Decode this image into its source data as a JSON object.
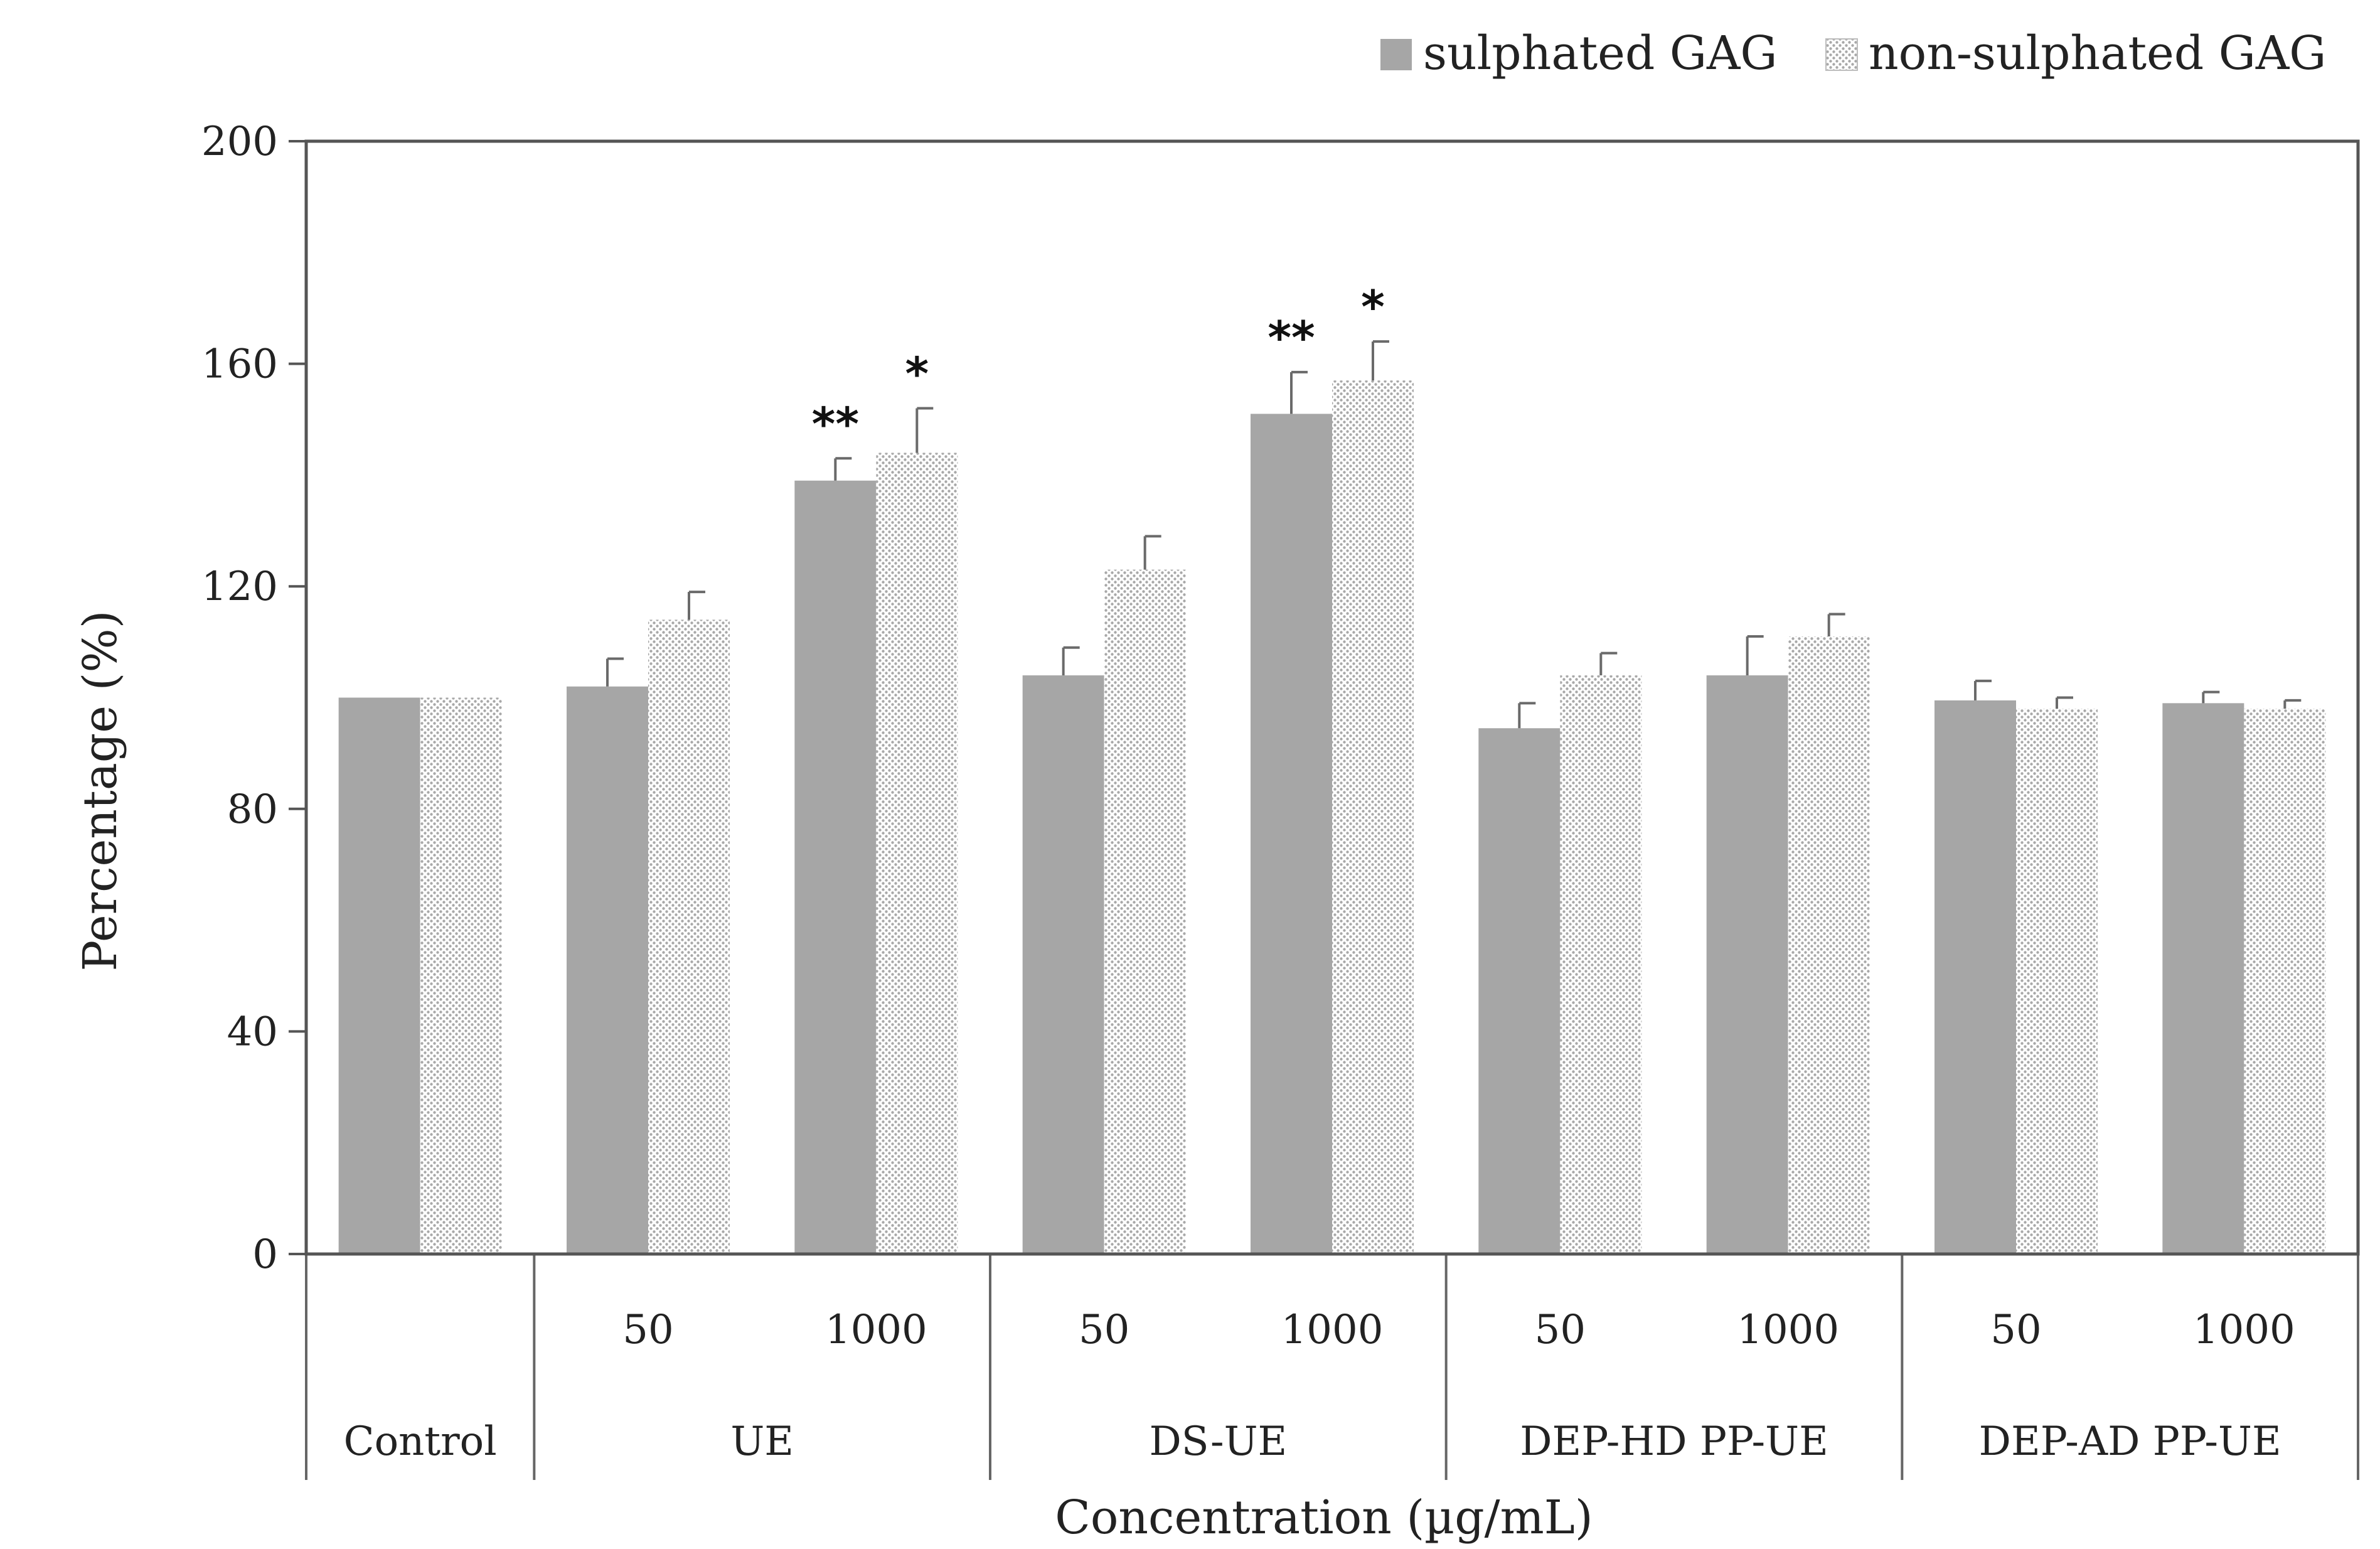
{
  "chart_data": {
    "type": "bar",
    "title": "",
    "xlabel": "Concentration (µg/mL)",
    "ylabel": "Percentage (%)",
    "ylim": [
      0,
      200
    ],
    "yticks": [
      0,
      40,
      80,
      120,
      160,
      200
    ],
    "grid": false,
    "legend_position": "top-right",
    "categories": [
      {
        "group": "Control",
        "concentration": ""
      },
      {
        "group": "UE",
        "concentration": "50"
      },
      {
        "group": "UE",
        "concentration": "1000"
      },
      {
        "group": "DS-UE",
        "concentration": "50"
      },
      {
        "group": "DS-UE",
        "concentration": "1000"
      },
      {
        "group": "DEP-HD PP-UE",
        "concentration": "50"
      },
      {
        "group": "DEP-HD PP-UE",
        "concentration": "1000"
      },
      {
        "group": "DEP-AD PP-UE",
        "concentration": "50"
      },
      {
        "group": "DEP-AD PP-UE",
        "concentration": "1000"
      }
    ],
    "groups": [
      {
        "label": "Control",
        "span": 1
      },
      {
        "label": "UE",
        "span": 2
      },
      {
        "label": "DS-UE",
        "span": 2
      },
      {
        "label": "DEP-HD PP-UE",
        "span": 2
      },
      {
        "label": "DEP-AD PP-UE",
        "span": 2
      }
    ],
    "series": [
      {
        "name": "sulphated GAG",
        "color": "#a6a6a6",
        "pattern": "solid",
        "values": [
          100,
          102,
          139,
          104,
          151,
          94.5,
          104,
          99.5,
          99
        ],
        "errors": [
          0,
          5,
          4,
          5,
          7.5,
          4.5,
          7,
          3.5,
          2
        ],
        "annotations": [
          "",
          "",
          "**",
          "",
          "**",
          "",
          "",
          "",
          ""
        ]
      },
      {
        "name": "non-sulphated GAG",
        "color": "#cfcfcf",
        "pattern": "dotted",
        "values": [
          100,
          114,
          144,
          123,
          157,
          104,
          111,
          98,
          98
        ],
        "errors": [
          0,
          5,
          8,
          6,
          7,
          4,
          4,
          2,
          1.5
        ],
        "annotations": [
          "",
          "",
          "*",
          "",
          "*",
          "",
          "",
          "",
          ""
        ]
      }
    ]
  }
}
